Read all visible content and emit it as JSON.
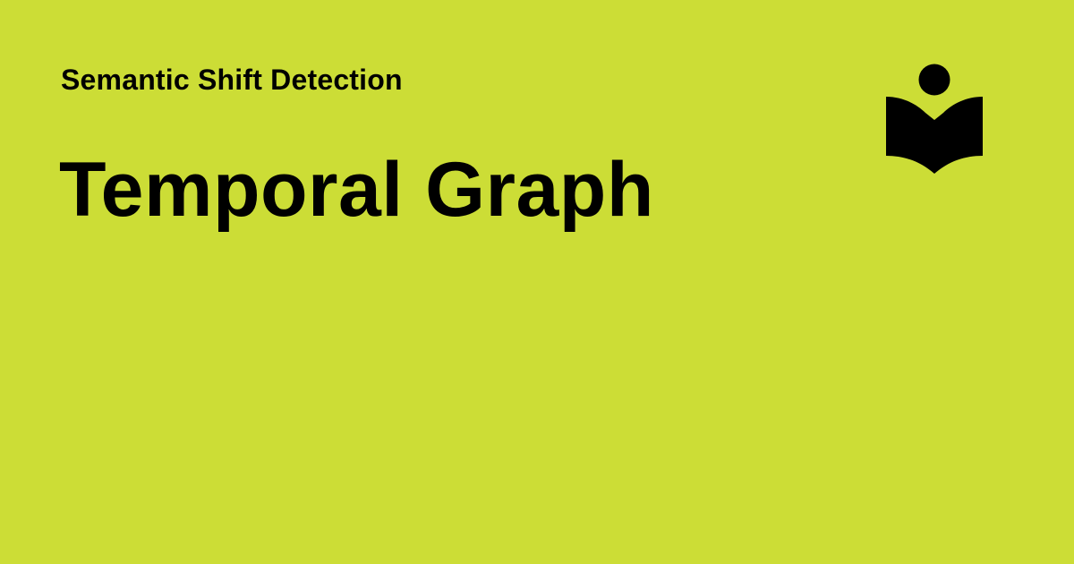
{
  "card": {
    "eyebrow": "Semantic Shift Detection",
    "title": "Temporal Graph",
    "logo_icon": "reader-book-icon",
    "background_color": "#CCDD36",
    "text_color": "#000000"
  }
}
